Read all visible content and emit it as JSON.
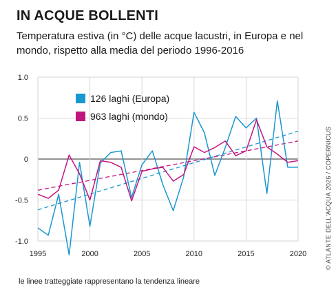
{
  "title": "IN ACQUE BOLLENTI",
  "subtitle": "Temperatura estiva (in °C) delle acque lacustri, in Europa e nel mondo, rispetto alla media del periodo 1996-2016",
  "note": "le linee tratteggiate rappresentano la tendenza lineare",
  "credit": "© ATLANTE DELL'ACQUA 2026 / COPERNICUS",
  "colors": {
    "europa": "#1a97cf",
    "mondo": "#c0177f",
    "grid": "#d6d6d6",
    "zero": "#555555"
  },
  "chart_data": {
    "type": "line",
    "title": "",
    "xlabel": "",
    "ylabel": "",
    "xlim": [
      1995,
      2020
    ],
    "ylim": [
      -1.0,
      1.0
    ],
    "grid": true,
    "legend_position": "top-left",
    "xticks": [
      1995,
      2000,
      2005,
      2010,
      2015,
      2020
    ],
    "yticks": [
      -1.0,
      -0.5,
      0,
      0.5,
      1.0
    ],
    "ytick_labels": [
      "-1.0",
      "-0.5",
      "0",
      "0.5",
      "1.0"
    ],
    "x": [
      1995,
      1996,
      1997,
      1998,
      1999,
      2000,
      2001,
      2002,
      2003,
      2004,
      2005,
      2006,
      2007,
      2008,
      2009,
      2010,
      2011,
      2012,
      2013,
      2014,
      2015,
      2016,
      2017,
      2018,
      2019,
      2020
    ],
    "series": [
      {
        "name": "126 laghi (Europa)",
        "color": "#1a97cf",
        "values": [
          -0.84,
          -0.93,
          -0.43,
          -1.17,
          -0.04,
          -0.82,
          -0.05,
          0.08,
          0.1,
          -0.47,
          -0.07,
          0.1,
          -0.31,
          -0.63,
          -0.22,
          0.57,
          0.32,
          -0.2,
          0.14,
          0.52,
          0.38,
          0.5,
          -0.42,
          0.71,
          -0.1,
          -0.1
        ],
        "trend": [
          -0.62,
          0.34
        ]
      },
      {
        "name": "963 laghi (mondo)",
        "color": "#c0177f",
        "values": [
          -0.43,
          -0.48,
          -0.38,
          0.05,
          -0.18,
          -0.5,
          -0.02,
          -0.04,
          -0.1,
          -0.51,
          -0.15,
          -0.12,
          -0.1,
          -0.27,
          -0.19,
          0.15,
          0.08,
          0.14,
          0.22,
          0.04,
          0.1,
          0.48,
          0.15,
          0.06,
          -0.04,
          -0.02
        ],
        "trend": [
          -0.38,
          0.22
        ]
      }
    ]
  }
}
